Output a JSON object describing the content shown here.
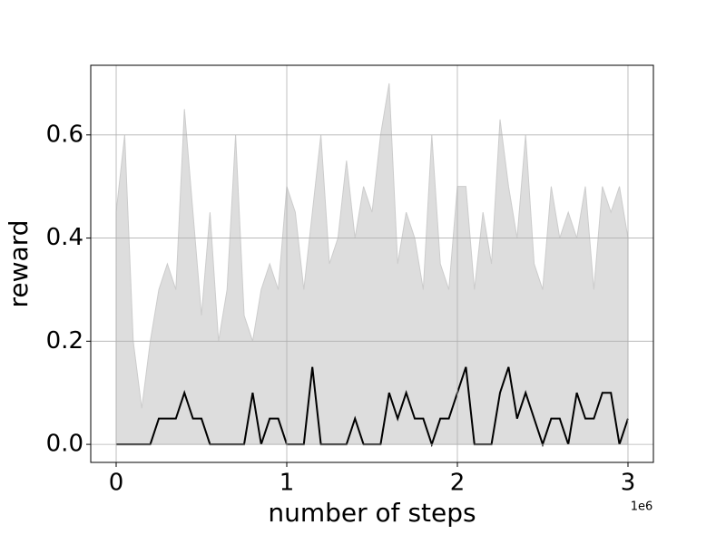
{
  "chart_data": {
    "type": "line",
    "x_label": "number of steps",
    "y_label": "reward",
    "x_offset_label": "1e6",
    "x": [
      0,
      50000,
      100000,
      150000,
      200000,
      250000,
      300000,
      350000,
      400000,
      450000,
      500000,
      550000,
      600000,
      650000,
      700000,
      750000,
      800000,
      850000,
      900000,
      950000,
      1000000,
      1050000,
      1100000,
      1150000,
      1200000,
      1250000,
      1300000,
      1350000,
      1400000,
      1450000,
      1500000,
      1550000,
      1600000,
      1650000,
      1700000,
      1750000,
      1800000,
      1850000,
      1900000,
      1950000,
      2000000,
      2050000,
      2100000,
      2150000,
      2200000,
      2250000,
      2300000,
      2350000,
      2400000,
      2450000,
      2500000,
      2550000,
      2600000,
      2650000,
      2700000,
      2750000,
      2800000,
      2850000,
      2900000,
      2950000,
      3000000
    ],
    "series": [
      {
        "kind": "area",
        "color": "#dddddd",
        "values": [
          0.45,
          0.6,
          0.2,
          0.07,
          0.2,
          0.3,
          0.35,
          0.3,
          0.65,
          0.45,
          0.25,
          0.45,
          0.2,
          0.3,
          0.6,
          0.25,
          0.2,
          0.3,
          0.35,
          0.3,
          0.5,
          0.45,
          0.3,
          0.45,
          0.6,
          0.35,
          0.4,
          0.55,
          0.4,
          0.5,
          0.45,
          0.6,
          0.7,
          0.35,
          0.45,
          0.4,
          0.3,
          0.6,
          0.35,
          0.3,
          0.5,
          0.5,
          0.3,
          0.45,
          0.35,
          0.63,
          0.5,
          0.4,
          0.6,
          0.35,
          0.3,
          0.5,
          0.4,
          0.45,
          0.4,
          0.5,
          0.3,
          0.5,
          0.45,
          0.5,
          0.4
        ]
      },
      {
        "kind": "line",
        "color": "#000000",
        "values": [
          0,
          0,
          0,
          0,
          0,
          0.05,
          0.05,
          0.05,
          0.1,
          0.05,
          0.05,
          0,
          0,
          0,
          0,
          0,
          0.1,
          0,
          0.05,
          0.05,
          0,
          0,
          0,
          0.15,
          0,
          0,
          0,
          0,
          0.05,
          0,
          0,
          0,
          0.1,
          0.05,
          0.1,
          0.05,
          0.05,
          0,
          0.05,
          0.05,
          0.1,
          0.15,
          0,
          0,
          0,
          0.1,
          0.15,
          0.05,
          0.1,
          0.05,
          0,
          0.05,
          0.05,
          0,
          0.1,
          0.05,
          0.05,
          0.1,
          0.1,
          0,
          0.05
        ]
      }
    ],
    "xlim": [
      -149000,
      3149000
    ],
    "ylim": [
      -0.035,
      0.735
    ],
    "xticks": [
      0,
      {
        "value": 1000000,
        "label": "1"
      },
      {
        "value": 2000000,
        "label": "2"
      },
      {
        "value": 3000000,
        "label": "3"
      }
    ],
    "yticks": [
      {
        "value": 0,
        "label": "0.0"
      },
      0.2,
      0.4,
      0.6
    ],
    "grid": true
  }
}
